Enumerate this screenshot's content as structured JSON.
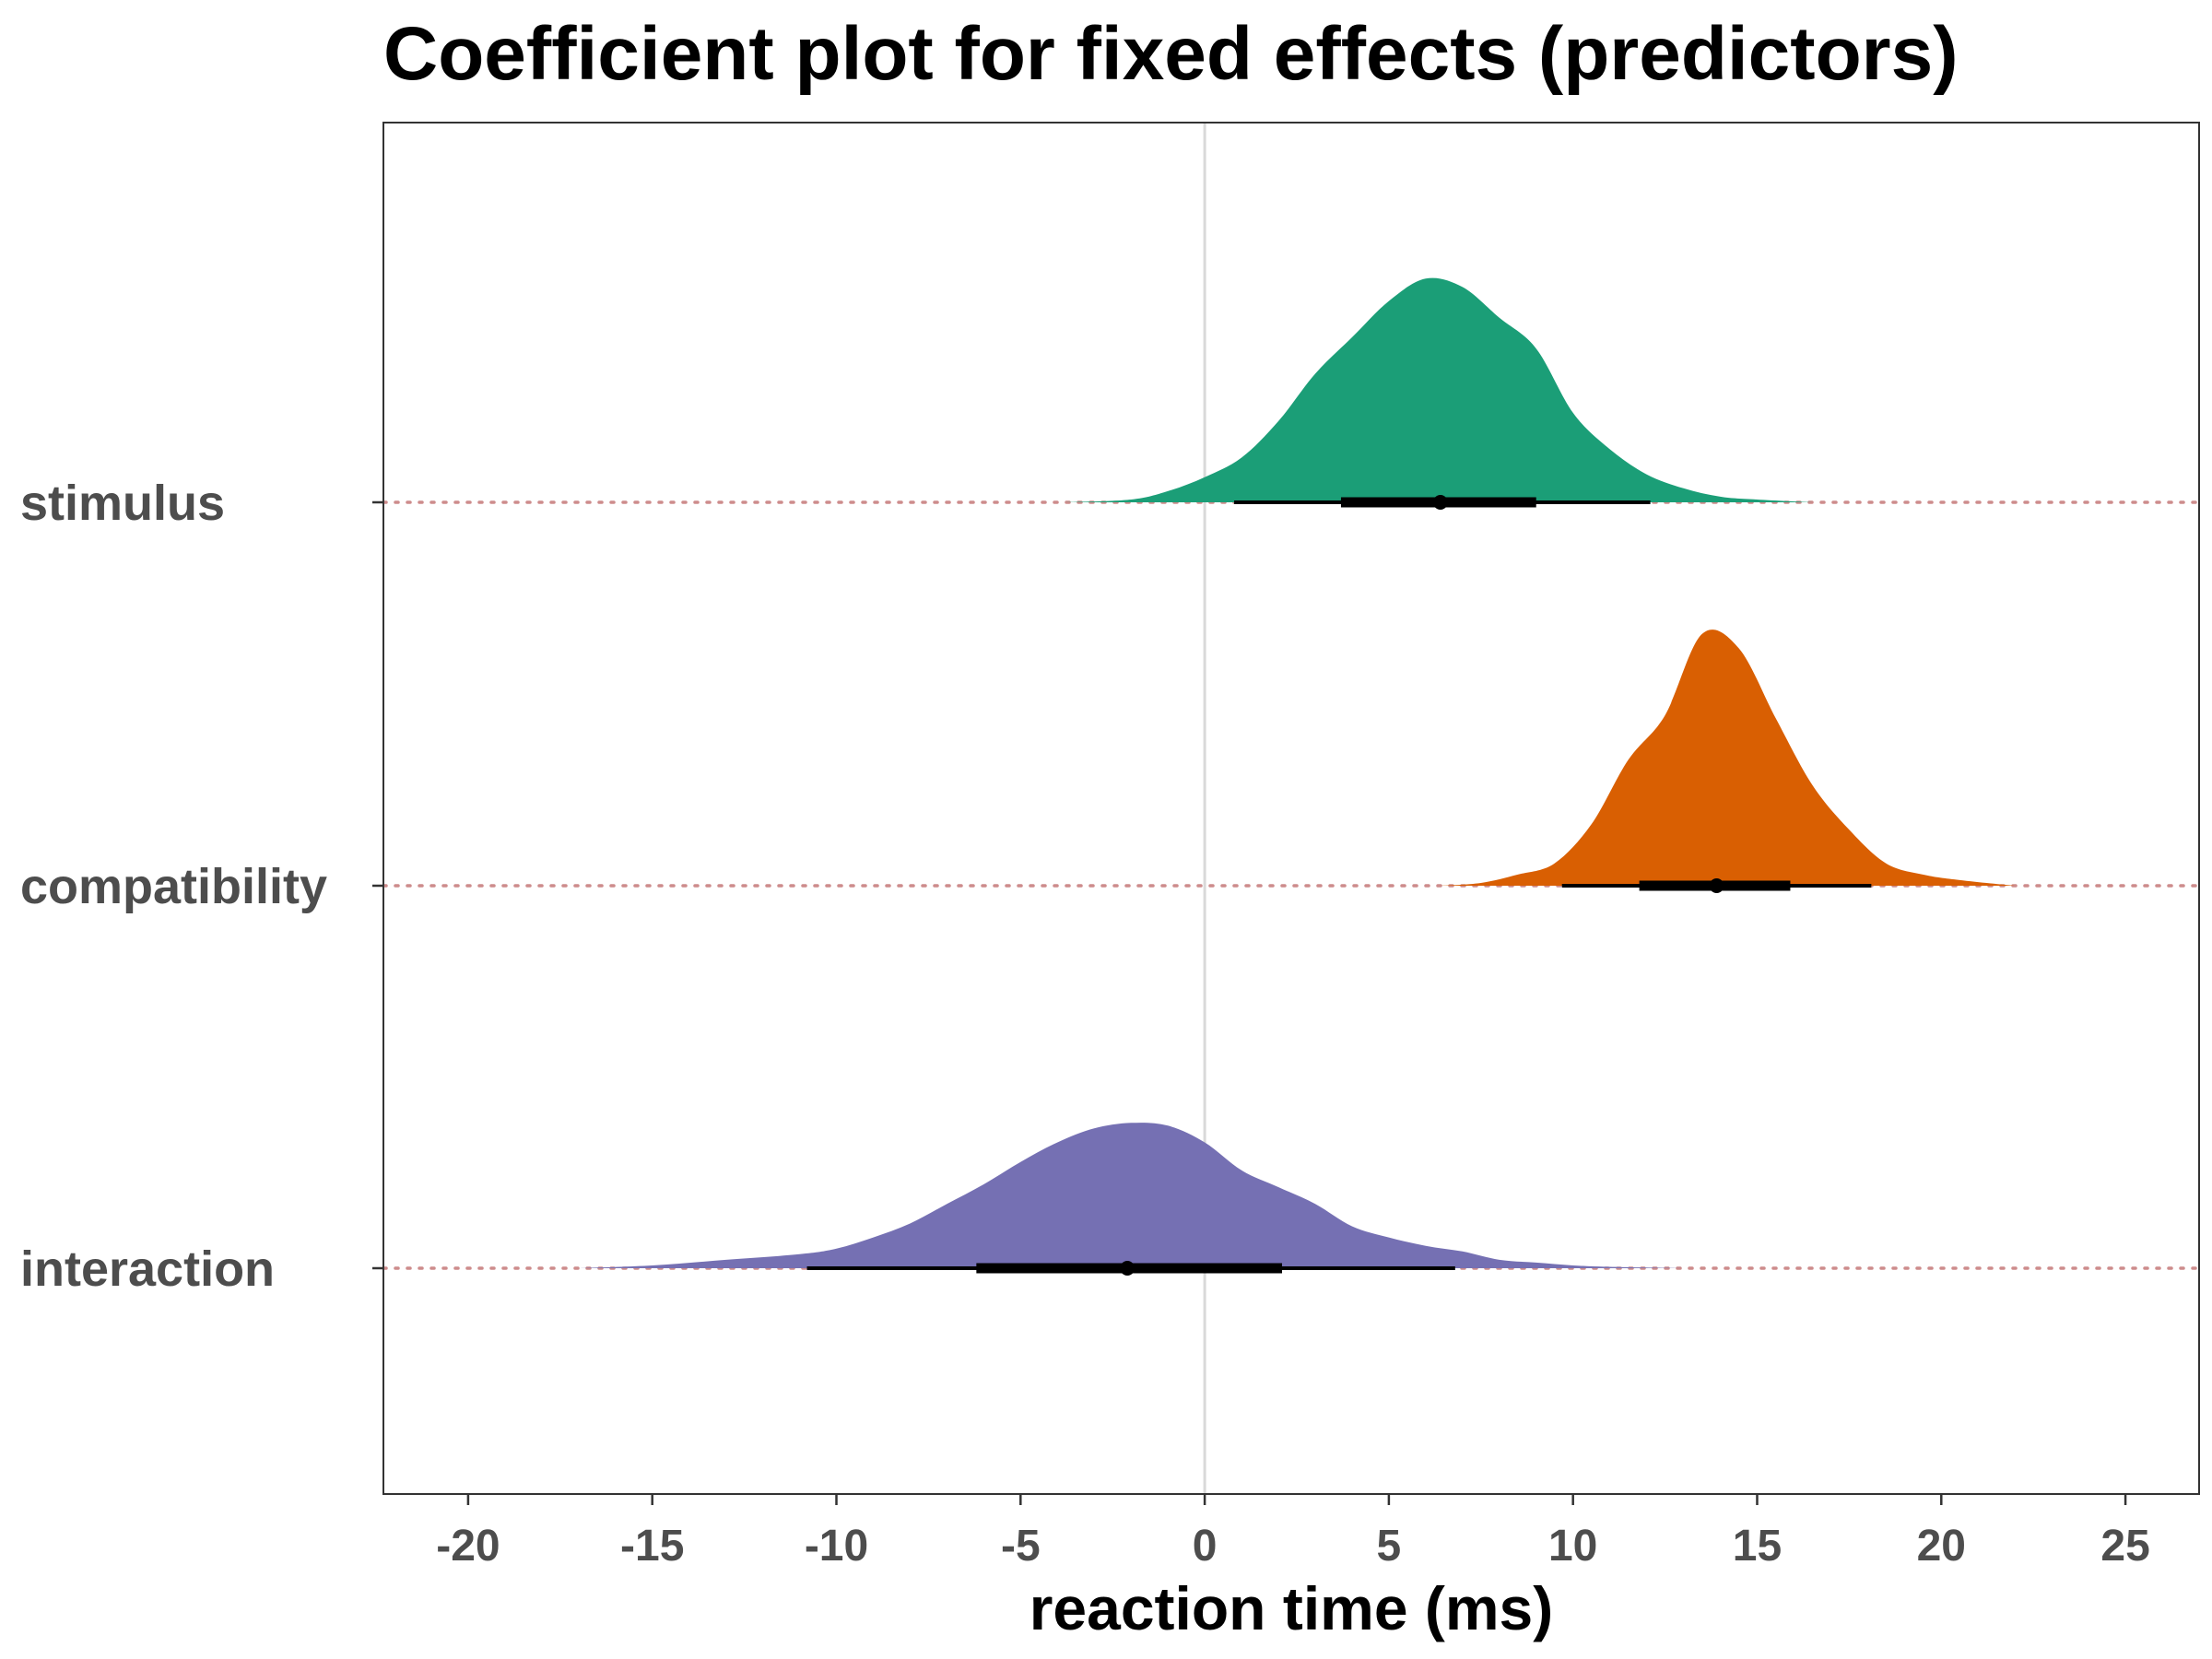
{
  "chart_data": {
    "type": "density-ridge",
    "title": "Coefficient plot for fixed effects (predictors)",
    "xlabel": "reaction time (ms)",
    "ylabel": "",
    "xlim": [
      -22.3,
      27.0
    ],
    "x_ticks": [
      -20,
      -15,
      -10,
      -5,
      0,
      5,
      10,
      15,
      20,
      25
    ],
    "x_tick_labels": [
      "-20",
      "-15",
      "-10",
      "-5",
      "0",
      "5",
      "10",
      "15",
      "20",
      "25"
    ],
    "reference_line": 0,
    "grid": false,
    "legend": "none",
    "series": [
      {
        "name": "stimulus",
        "color": "#1b9e77",
        "median": 6.4,
        "interval_inner": [
          3.7,
          9.0
        ],
        "interval_outer": [
          0.8,
          12.1
        ],
        "density": [
          [
            -3.8,
            0.0
          ],
          [
            -2,
            0.01
          ],
          [
            -1,
            0.04
          ],
          [
            0,
            0.09
          ],
          [
            1,
            0.16
          ],
          [
            2,
            0.29
          ],
          [
            3,
            0.46
          ],
          [
            4,
            0.59
          ],
          [
            5,
            0.72
          ],
          [
            6,
            0.8
          ],
          [
            7,
            0.77
          ],
          [
            8,
            0.66
          ],
          [
            9,
            0.55
          ],
          [
            10,
            0.32
          ],
          [
            11,
            0.19
          ],
          [
            12,
            0.1
          ],
          [
            13,
            0.05
          ],
          [
            14,
            0.02
          ],
          [
            15,
            0.01
          ],
          [
            16.5,
            0.0
          ]
        ]
      },
      {
        "name": "compatibility",
        "color": "#d95f02",
        "median": 13.9,
        "interval_inner": [
          11.8,
          15.9
        ],
        "interval_outer": [
          9.7,
          18.1
        ],
        "density": [
          [
            6.4,
            0.0
          ],
          [
            7.5,
            0.01
          ],
          [
            8.5,
            0.04
          ],
          [
            9.5,
            0.08
          ],
          [
            10.5,
            0.22
          ],
          [
            11.5,
            0.45
          ],
          [
            12.5,
            0.61
          ],
          [
            13.5,
            0.9
          ],
          [
            14.5,
            0.85
          ],
          [
            15.5,
            0.6
          ],
          [
            16.5,
            0.36
          ],
          [
            17.5,
            0.2
          ],
          [
            18.5,
            0.08
          ],
          [
            19.5,
            0.04
          ],
          [
            20.5,
            0.02
          ],
          [
            22,
            0.0
          ]
        ]
      },
      {
        "name": "interaction",
        "color": "#7570b3",
        "median": -2.1,
        "interval_inner": [
          -6.2,
          2.1
        ],
        "interval_outer": [
          -10.8,
          6.8
        ],
        "density": [
          [
            -17,
            0.0
          ],
          [
            -15,
            0.01
          ],
          [
            -13,
            0.03
          ],
          [
            -11,
            0.05
          ],
          [
            -10,
            0.07
          ],
          [
            -9,
            0.11
          ],
          [
            -8,
            0.16
          ],
          [
            -7,
            0.23
          ],
          [
            -6,
            0.3
          ],
          [
            -5,
            0.38
          ],
          [
            -4,
            0.45
          ],
          [
            -3,
            0.5
          ],
          [
            -2,
            0.52
          ],
          [
            -1,
            0.51
          ],
          [
            0,
            0.45
          ],
          [
            1,
            0.35
          ],
          [
            2,
            0.29
          ],
          [
            3,
            0.23
          ],
          [
            4,
            0.15
          ],
          [
            5,
            0.11
          ],
          [
            6,
            0.08
          ],
          [
            7,
            0.06
          ],
          [
            8,
            0.03
          ],
          [
            9,
            0.02
          ],
          [
            10,
            0.01
          ],
          [
            11,
            0.005
          ],
          [
            13,
            0.0
          ]
        ]
      }
    ]
  }
}
